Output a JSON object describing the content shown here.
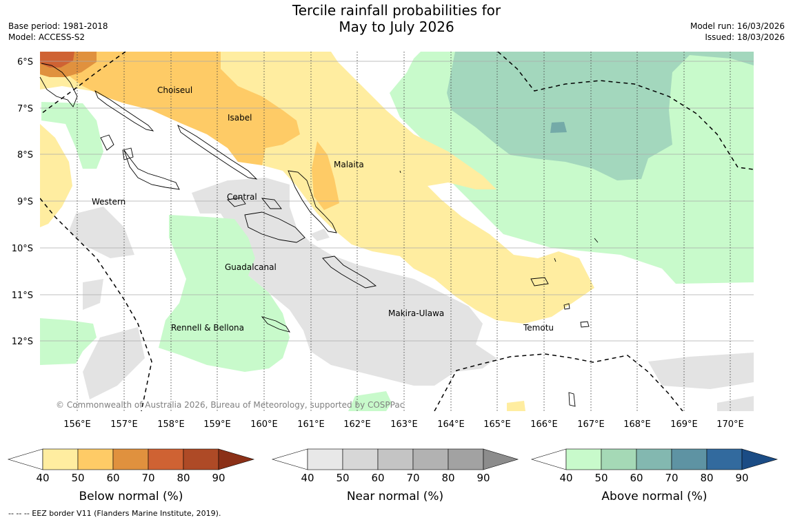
{
  "title": {
    "line1": "Tercile rainfall probabilities for",
    "line2": "May to July 2026"
  },
  "meta": {
    "base_period": "Base period: 1981-2018",
    "model": "Model: ACCESS-S2",
    "model_run": "Model run: 16/03/2026",
    "issued": "Issued: 18/03/2026"
  },
  "map": {
    "lat_labels": [
      "6°S",
      "7°S",
      "8°S",
      "9°S",
      "10°S",
      "11°S",
      "12°S"
    ],
    "lon_labels": [
      "156°E",
      "157°E",
      "158°E",
      "159°E",
      "160°E",
      "161°E",
      "162°E",
      "163°E",
      "164°E",
      "165°E",
      "166°E",
      "167°E",
      "168°E",
      "169°E",
      "170°E"
    ],
    "places": [
      "Choiseul",
      "Isabel",
      "Malaita",
      "Western",
      "Central",
      "Guadalcanal",
      "Makira-Ulawa",
      "Rennell & Bellona",
      "Temotu"
    ],
    "copyright": "© Commonwealth of Australia 2026, Bureau of Meteorology, supported by COSPPac"
  },
  "colorbars": {
    "ticks": [
      "40",
      "50",
      "60",
      "70",
      "80",
      "90"
    ],
    "below": {
      "title": "Below normal (%)",
      "colors": [
        "#ffffff",
        "#ffeda0",
        "#fecb66",
        "#e0913e",
        "#cf6233",
        "#ae4a26",
        "#8b3017"
      ]
    },
    "near": {
      "title": "Near normal (%)",
      "colors": [
        "#ffffff",
        "#e8e8e8",
        "#d7d7d7",
        "#c4c4c4",
        "#b2b2b2",
        "#a2a2a2",
        "#8c8c8c"
      ]
    },
    "above": {
      "title": "Above normal (%)",
      "colors": [
        "#ffffff",
        "#c8facb",
        "#a5d9b6",
        "#83b8b0",
        "#5e93a3",
        "#326a9e",
        "#1b4c85"
      ]
    }
  },
  "footnote": "--  --  -- EEZ border V11 (Flanders Marine Institute, 2019)."
}
